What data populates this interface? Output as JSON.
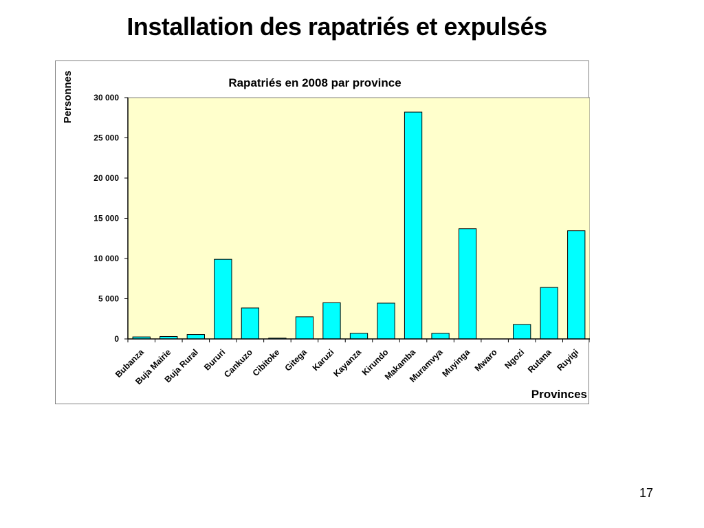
{
  "slide": {
    "title": "Installation des rapatriés et expulsés",
    "page_number": "17"
  },
  "colors": {
    "plot_background": "#FFFFCC",
    "bar_fill": "#00FFFF",
    "bar_stroke": "#000000",
    "frame_border": "#7F7F7F"
  },
  "chart_data": {
    "type": "bar",
    "title": "Rapatriés en 2008 par province",
    "xlabel": "Provinces",
    "ylabel": "Personnes",
    "ylim": [
      0,
      30000
    ],
    "yticks": [
      0,
      5000,
      10000,
      15000,
      20000,
      25000,
      30000
    ],
    "ytick_labels": [
      "0",
      "5 000",
      "10 000",
      "15 000",
      "20 000",
      "25 000",
      "30 000"
    ],
    "grid": false,
    "legend": "none",
    "categories": [
      "Bubanza",
      "Buja Mairie",
      "Buja Rural",
      "Bururi",
      "Cankuzo",
      "Cibitoke",
      "Gitega",
      "Karuzi",
      "Kayanza",
      "Kirundo",
      "Makamba",
      "Muramvya",
      "Muyinga",
      "Mwaro",
      "Ngozi",
      "Rutana",
      "Ruyigi"
    ],
    "values": [
      250,
      300,
      550,
      9900,
      3850,
      100,
      2750,
      4500,
      700,
      4450,
      28200,
      700,
      13700,
      0,
      1800,
      6400,
      13450
    ]
  }
}
